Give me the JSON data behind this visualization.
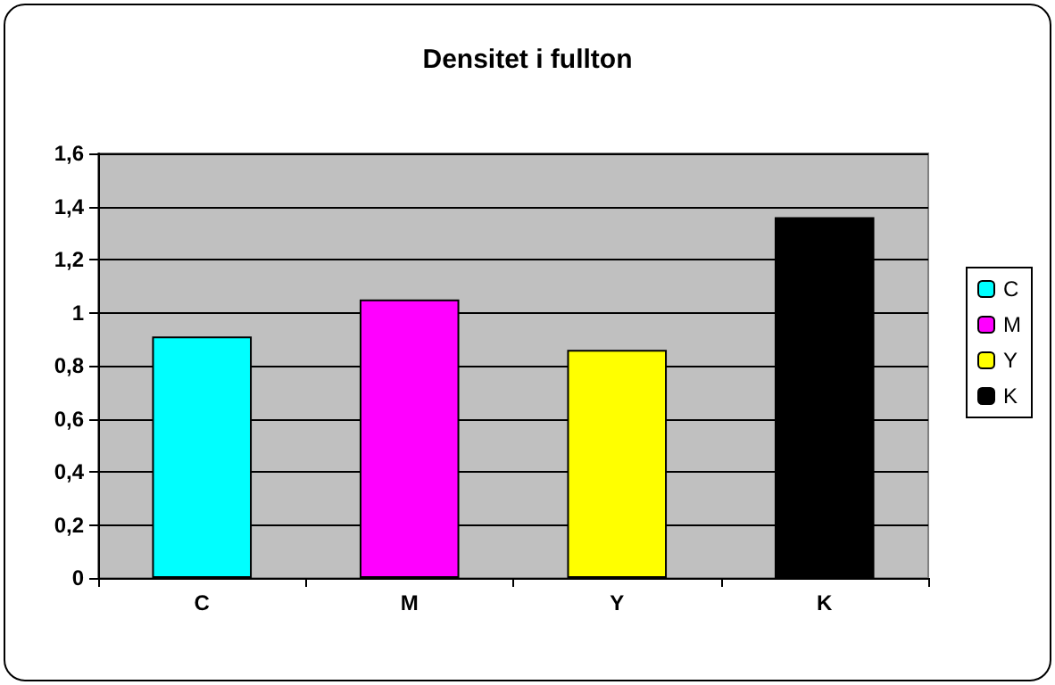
{
  "chart_data": {
    "type": "bar",
    "title": "Densitet i fullton",
    "categories": [
      "C",
      "M",
      "Y",
      "K"
    ],
    "series": [
      {
        "name": "C",
        "color": "#00ffff",
        "values": [
          0.91,
          null,
          null,
          null
        ]
      },
      {
        "name": "M",
        "color": "#ff00ff",
        "values": [
          null,
          1.05,
          null,
          null
        ]
      },
      {
        "name": "Y",
        "color": "#ffff00",
        "values": [
          null,
          null,
          0.86,
          null
        ]
      },
      {
        "name": "K",
        "color": "#000000",
        "values": [
          null,
          null,
          null,
          1.36
        ]
      }
    ],
    "ylim": [
      0,
      1.6
    ],
    "yticks": [
      {
        "value": 0,
        "label": "0"
      },
      {
        "value": 0.2,
        "label": "0,2"
      },
      {
        "value": 0.4,
        "label": "0,4"
      },
      {
        "value": 0.6,
        "label": "0,6"
      },
      {
        "value": 0.8,
        "label": "0,8"
      },
      {
        "value": 1,
        "label": "1"
      },
      {
        "value": 1.2,
        "label": "1,2"
      },
      {
        "value": 1.4,
        "label": "1,4"
      },
      {
        "value": 1.6,
        "label": "1,6"
      }
    ],
    "grid": "y",
    "legend": "right"
  }
}
